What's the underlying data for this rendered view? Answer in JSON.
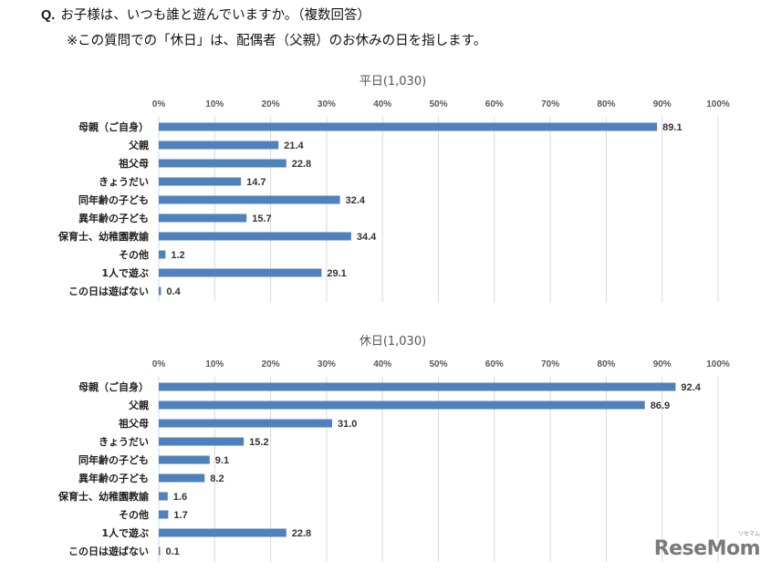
{
  "question": {
    "mark": "Q.",
    "text": "お子様は、いつも誰と遊んでいますか。（複数回答）",
    "note": "※この質問での「休日」は、配偶者（父親）のお休みの日を指します。"
  },
  "chart_data": [
    {
      "type": "bar",
      "orientation": "horizontal",
      "title": "平日(1,030)",
      "xlabel": "",
      "ylabel": "",
      "xlim": [
        0,
        100
      ],
      "x_ticks": [
        "0%",
        "10%",
        "20%",
        "30%",
        "40%",
        "50%",
        "60%",
        "70%",
        "80%",
        "90%",
        "100%"
      ],
      "grid": true,
      "categories": [
        "母親（ご自身）",
        "父親",
        "祖父母",
        "きょうだい",
        "同年齢の子ども",
        "異年齢の子ども",
        "保育士、幼稚園教諭",
        "その他",
        "1人で遊ぶ",
        "この日は遊ばない"
      ],
      "values": [
        89.1,
        21.4,
        22.8,
        14.7,
        32.4,
        15.7,
        34.4,
        1.2,
        29.1,
        0.4
      ],
      "value_labels": [
        "89.1",
        "21.4",
        "22.8",
        "14.7",
        "32.4",
        "15.7",
        "34.4",
        "1.2",
        "29.1",
        "0.4"
      ],
      "color": "#4f81bd"
    },
    {
      "type": "bar",
      "orientation": "horizontal",
      "title": "休日(1,030)",
      "xlabel": "",
      "ylabel": "",
      "xlim": [
        0,
        100
      ],
      "x_ticks": [
        "0%",
        "10%",
        "20%",
        "30%",
        "40%",
        "50%",
        "60%",
        "70%",
        "80%",
        "90%",
        "100%"
      ],
      "grid": true,
      "categories": [
        "母親（ご自身）",
        "父親",
        "祖父母",
        "きょうだい",
        "同年齢の子ども",
        "異年齢の子ども",
        "保育士、幼稚園教諭",
        "その他",
        "1人で遊ぶ",
        "この日は遊ばない"
      ],
      "values": [
        92.4,
        86.9,
        31.0,
        15.2,
        9.1,
        8.2,
        1.6,
        1.7,
        22.8,
        0.1
      ],
      "value_labels": [
        "92.4",
        "86.9",
        "31.0",
        "15.2",
        "9.1",
        "8.2",
        "1.6",
        "1.7",
        "22.8",
        "0.1"
      ],
      "color": "#4f81bd"
    }
  ],
  "watermark": {
    "logo_text": "ReseMom",
    "logo_kana": "リセマム"
  }
}
